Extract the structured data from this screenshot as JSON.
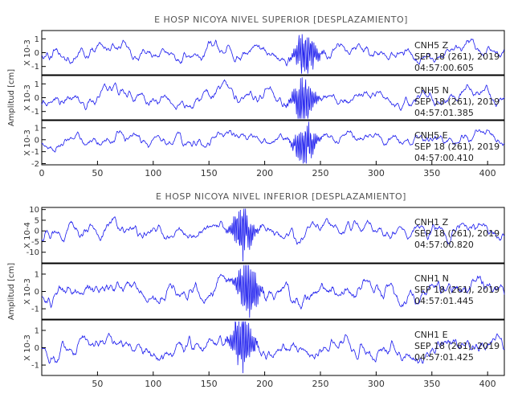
{
  "chart_data": [
    {
      "type": "line",
      "title": "E HOSP NICOYA NIVEL SUPERIOR [DESPLAZAMIENTO]",
      "ylabel": "Amplitud [cm]",
      "xlim": [
        0,
        415
      ],
      "xticks": [
        "0",
        "50",
        "100",
        "150",
        "200",
        "250",
        "300",
        "350",
        "400"
      ],
      "panels": [
        {
          "scale": "X 10-3",
          "ylim": [
            -1.6,
            1.6
          ],
          "yticks": [
            "1",
            "0",
            "-1"
          ],
          "station": "CNH5   Z",
          "date": "SEP 18 (261), 2019",
          "time": "04:57:00.605",
          "event_center": 237
        },
        {
          "scale": "X 10-3",
          "ylim": [
            -1.6,
            1.6
          ],
          "yticks": [
            "1",
            "0",
            "-1"
          ],
          "station": "CNH5   N",
          "date": "SEP 18 (261), 2019",
          "time": "04:57:01.385",
          "event_center": 235
        },
        {
          "scale": "X 10-3",
          "ylim": [
            -2.1,
            1.6
          ],
          "yticks": [
            "1",
            "0",
            "-1",
            "-2"
          ],
          "station": "CNH5   E",
          "date": "SEP 18 (261), 2019",
          "time": "04:57:00.410",
          "event_center": 236
        }
      ]
    },
    {
      "type": "line",
      "title": "E HOSP NICOYA NIVEL INFERIOR [DESPLAZAMIENTO]",
      "ylabel": "Amplitud [cm]",
      "xlim": [
        0,
        415
      ],
      "xticks": [
        "50",
        "100",
        "150",
        "200",
        "250",
        "300",
        "350",
        "400"
      ],
      "panels": [
        {
          "scale": "X 10-4",
          "ylim": [
            -15,
            11
          ],
          "yticks": [
            "10",
            "5",
            "0",
            "-5",
            "-10"
          ],
          "station": "CNH1   Z",
          "date": "SEP 18 (261), 2019",
          "time": "04:57:00.820",
          "event_center": 180
        },
        {
          "scale": "X 10-3",
          "ylim": [
            -1.6,
            1.6
          ],
          "yticks": [
            "1",
            "0",
            "-1"
          ],
          "station": "CNH1   N",
          "date": "SEP 18 (261), 2019",
          "time": "04:57:01.445",
          "event_center": 185
        },
        {
          "scale": "X 10-3",
          "ylim": [
            -1.6,
            1.6
          ],
          "yticks": [
            "1",
            "0",
            "-1"
          ],
          "station": "CNH1   E",
          "date": "SEP 18 (261), 2019",
          "time": "04:57:01.425",
          "event_center": 180
        }
      ]
    }
  ],
  "colors": {
    "trace": "#1a1aee",
    "frame": "#000000"
  }
}
